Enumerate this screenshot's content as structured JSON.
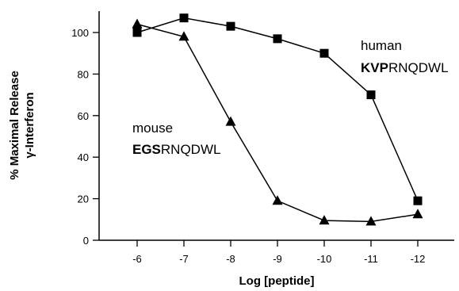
{
  "chart_data": {
    "type": "line",
    "xlabel": "Log [peptide]",
    "ylabel_line1": "% Maximal Release",
    "ylabel_line2": "γ-Interferon",
    "x": [
      -6,
      -7,
      -8,
      -9,
      -10,
      -11,
      -12
    ],
    "x_tick_labels": [
      "-6",
      "-7",
      "-8",
      "-9",
      "-10",
      "-11",
      "-12"
    ],
    "xlim": [
      -5,
      -12.5
    ],
    "ylim": [
      0,
      110
    ],
    "y_ticks": [
      0,
      20,
      40,
      60,
      80,
      100
    ],
    "y_tick_labels": [
      "0",
      "20",
      "40",
      "60",
      "80",
      "100"
    ],
    "grid": false,
    "series": [
      {
        "name": "human KVPRNQDWL",
        "marker": "square",
        "values": [
          100,
          107,
          103,
          97,
          90,
          70,
          19
        ]
      },
      {
        "name": "mouse EGSRNQDWL",
        "marker": "triangle",
        "values": [
          104,
          98,
          57,
          19,
          9.5,
          9,
          12.5
        ]
      }
    ],
    "annotations": {
      "human": {
        "line1": "human",
        "bold": "KVP",
        "rest": "RNQDWL"
      },
      "mouse": {
        "line1": "mouse",
        "bold": "EGS",
        "rest": "RNQDWL"
      }
    }
  }
}
